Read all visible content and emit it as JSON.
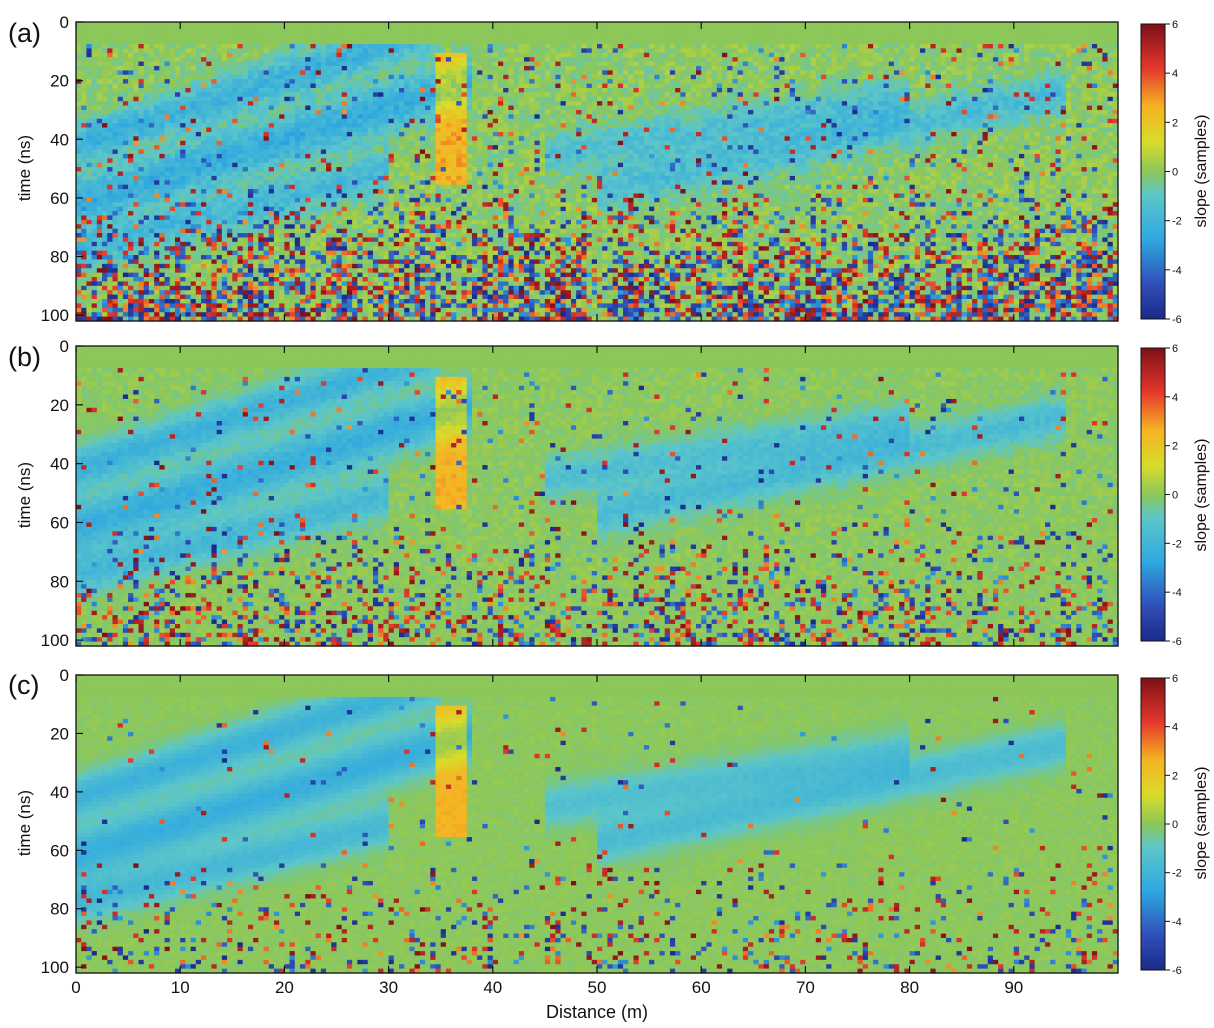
{
  "figure": {
    "shared_xlabel": "Distance (m)"
  },
  "chart_data": [
    {
      "type": "heatmap",
      "panel_label": "(a)",
      "xlabel": "",
      "ylabel": "time (ns)",
      "xlim": [
        0,
        100
      ],
      "ylim": [
        0,
        102
      ],
      "y_inverted": true,
      "x_ticks": [
        0,
        10,
        20,
        30,
        40,
        50,
        60,
        70,
        80,
        90
      ],
      "x_tick_labels_shown": false,
      "y_ticks": [
        0,
        20,
        40,
        60,
        80,
        100
      ],
      "colorbar": {
        "label": "slope (samples)",
        "range": [
          -6,
          6
        ],
        "ticks": [
          6,
          4,
          2,
          0,
          -2,
          -4,
          -6
        ],
        "colormap": "jet",
        "position": "right"
      },
      "noise_level": 1.0,
      "description": "Raw slope estimate: background near 0 (green), coherent dipping bands near -2 (cyan/blue), dense high-magnitude noise (±6) concentrated below about 60 ns."
    },
    {
      "type": "heatmap",
      "panel_label": "(b)",
      "xlabel": "",
      "ylabel": "time (ns)",
      "xlim": [
        0,
        100
      ],
      "ylim": [
        0,
        102
      ],
      "y_inverted": true,
      "x_ticks": [
        0,
        10,
        20,
        30,
        40,
        50,
        60,
        70,
        80,
        90
      ],
      "x_tick_labels_shown": false,
      "y_ticks": [
        0,
        20,
        40,
        60,
        80,
        100
      ],
      "colorbar": {
        "label": "slope (samples)",
        "range": [
          -6,
          6
        ],
        "ticks": [
          6,
          4,
          2,
          0,
          -2,
          -4,
          -6
        ],
        "colormap": "jet",
        "position": "right"
      },
      "noise_level": 0.55,
      "description": "Partially smoothed slope field: same structures, reduced noise, noise mostly below 60 ns."
    },
    {
      "type": "heatmap",
      "panel_label": "(c)",
      "xlabel": "Distance (m)",
      "ylabel": "time (ns)",
      "xlim": [
        0,
        100
      ],
      "ylim": [
        0,
        102
      ],
      "y_inverted": true,
      "x_ticks": [
        0,
        10,
        20,
        30,
        40,
        50,
        60,
        70,
        80,
        90
      ],
      "x_tick_labels": [
        "0",
        "10",
        "20",
        "30",
        "40",
        "50",
        "60",
        "70",
        "80",
        "90"
      ],
      "y_ticks": [
        0,
        20,
        40,
        60,
        80,
        100
      ],
      "colorbar": {
        "label": "slope (samples)",
        "range": [
          -6,
          6
        ],
        "ticks": [
          6,
          4,
          2,
          0,
          -2,
          -4,
          -6
        ],
        "colormap": "jet",
        "position": "right"
      },
      "noise_level": 0.28,
      "description": "Smoothest slope field: broad green background, dipping cyan bands, positive-slope patch near 35–37 m at 10–55 ns, scattered blobs below 70 ns."
    }
  ]
}
